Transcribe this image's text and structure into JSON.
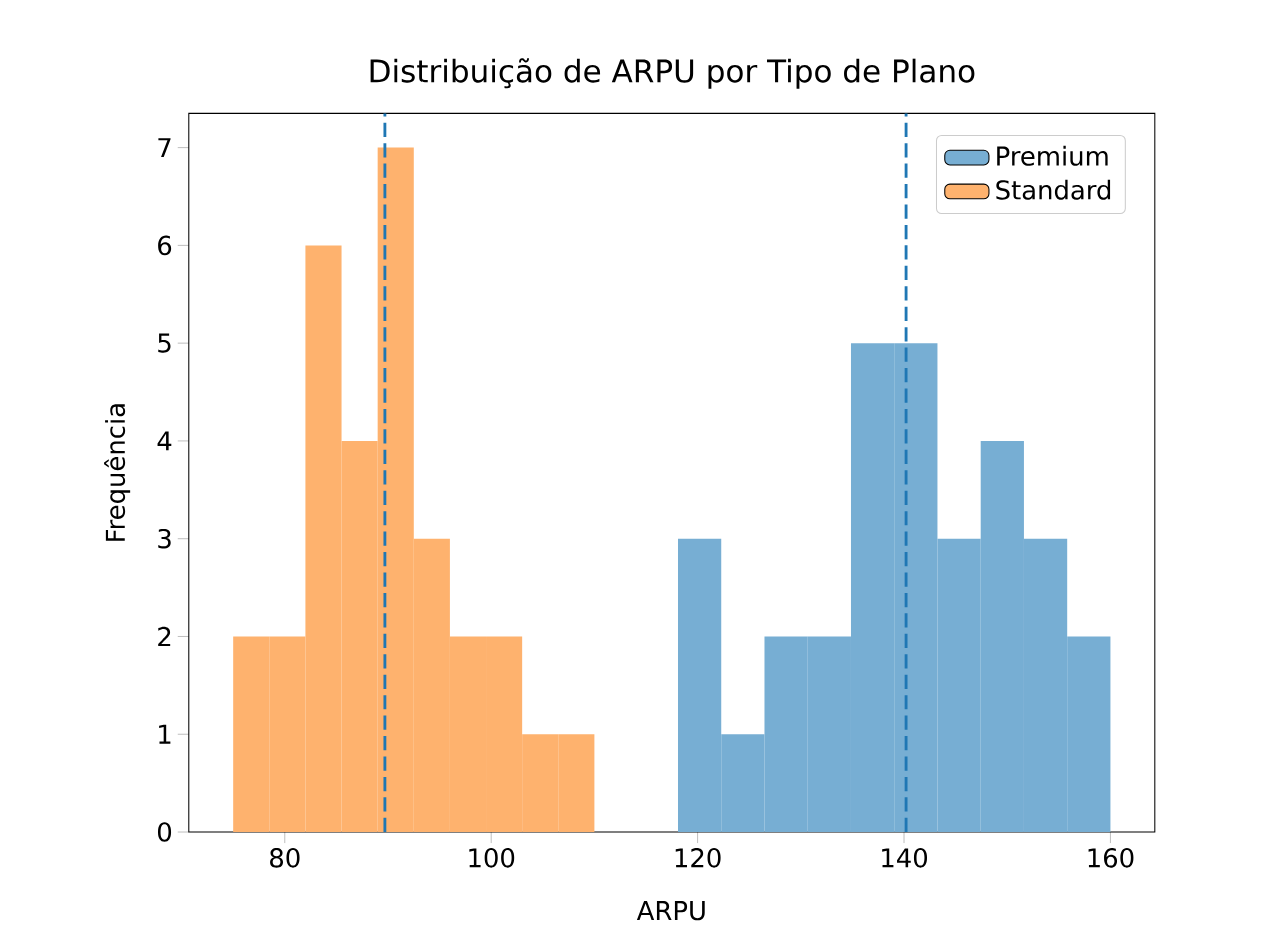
{
  "chart_data": {
    "type": "histogram",
    "title": "Distribuição de ARPU por Tipo de Plano",
    "xlabel": "ARPU",
    "ylabel": "Frequência",
    "bins": [
      75,
      78.5,
      82,
      85.5,
      89,
      92.5,
      96,
      99.5,
      103,
      106.5,
      110,
      118.1,
      122.29,
      126.48,
      130.67,
      134.86,
      139.05,
      143.24,
      147.43,
      151.62,
      155.81,
      160.0
    ],
    "series": [
      {
        "name": "Premium",
        "color": "#77aed3",
        "values": [
          null,
          null,
          null,
          null,
          null,
          null,
          null,
          null,
          null,
          null,
          null,
          3,
          1,
          2,
          2,
          5,
          5,
          3,
          4,
          3,
          2
        ]
      },
      {
        "name": "Standard",
        "color": "#feb26e",
        "values": [
          2,
          2,
          6,
          4,
          7,
          3,
          2,
          2,
          1,
          1,
          null,
          null,
          null,
          null,
          null,
          null,
          null,
          null,
          null,
          null,
          null
        ]
      }
    ],
    "ref_lines": [
      {
        "axis": "x",
        "value": 89.7,
        "color": "#1f77b4",
        "line_style": "dashed"
      },
      {
        "axis": "x",
        "value": 140.2,
        "color": "#1f77b4",
        "line_style": "dashed"
      }
    ],
    "xlim": [
      70.7,
      164.3
    ],
    "ylim": [
      0,
      7.35
    ],
    "xticks": [
      80,
      100,
      120,
      140,
      160
    ],
    "yticks": [
      0,
      1,
      2,
      3,
      4,
      5,
      6,
      7
    ],
    "legend": "top right",
    "grid": false
  }
}
